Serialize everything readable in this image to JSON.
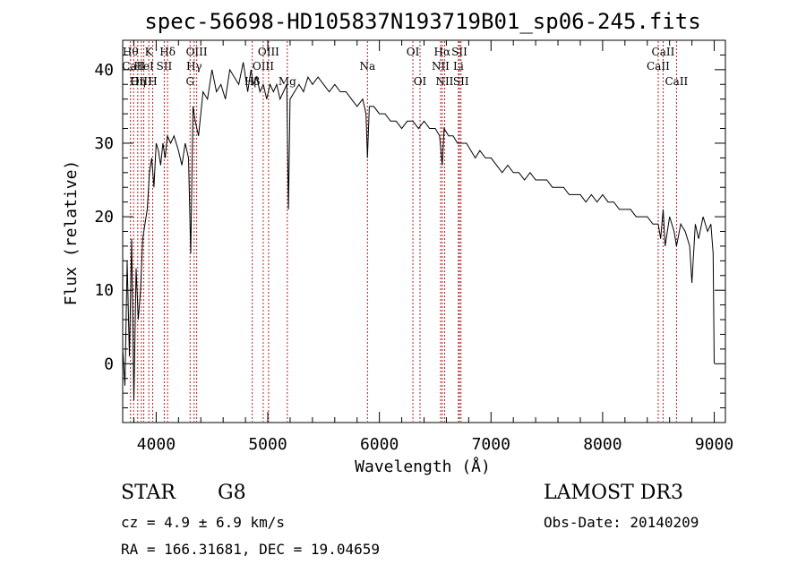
{
  "chart_data": {
    "type": "line",
    "title": "spec-56698-HD105837N193719B01_sp06-245.fits",
    "xlabel": "Wavelength (Å)",
    "ylabel": "Flux (relative)",
    "xlim": [
      3700,
      9100
    ],
    "ylim": [
      -8,
      44
    ],
    "xticks": [
      4000,
      5000,
      6000,
      7000,
      8000,
      9000
    ],
    "yticks": [
      0,
      10,
      20,
      30,
      40
    ],
    "series": [
      {
        "name": "flux",
        "x": [
          3700,
          3720,
          3740,
          3760,
          3780,
          3800,
          3820,
          3840,
          3860,
          3880,
          3900,
          3920,
          3940,
          3960,
          3980,
          4000,
          4020,
          4040,
          4060,
          4080,
          4100,
          4130,
          4160,
          4200,
          4230,
          4260,
          4290,
          4310,
          4330,
          4350,
          4380,
          4420,
          4460,
          4500,
          4540,
          4580,
          4620,
          4660,
          4700,
          4740,
          4780,
          4820,
          4850,
          4870,
          4900,
          4930,
          4960,
          4990,
          5020,
          5050,
          5080,
          5110,
          5140,
          5170,
          5185,
          5200,
          5240,
          5280,
          5320,
          5360,
          5400,
          5450,
          5500,
          5550,
          5600,
          5650,
          5700,
          5750,
          5800,
          5850,
          5880,
          5893,
          5910,
          5950,
          6000,
          6050,
          6100,
          6150,
          6200,
          6250,
          6300,
          6350,
          6400,
          6450,
          6500,
          6540,
          6563,
          6580,
          6620,
          6660,
          6700,
          6740,
          6780,
          6820,
          6860,
          6900,
          6950,
          7000,
          7050,
          7100,
          7150,
          7200,
          7250,
          7300,
          7350,
          7400,
          7450,
          7500,
          7550,
          7600,
          7650,
          7700,
          7750,
          7800,
          7850,
          7900,
          7950,
          8000,
          8050,
          8100,
          8150,
          8200,
          8250,
          8300,
          8350,
          8400,
          8450,
          8498,
          8520,
          8542,
          8560,
          8600,
          8640,
          8662,
          8700,
          8740,
          8780,
          8800,
          8830,
          8860,
          8900,
          8940,
          8970,
          8990,
          9000
        ],
        "values": [
          2,
          -3,
          14,
          1,
          17,
          -5,
          13,
          6,
          10,
          17,
          19,
          21,
          26,
          28,
          24,
          30,
          29,
          27,
          30,
          28,
          31,
          30,
          31,
          29,
          27,
          30,
          28,
          15,
          35,
          33,
          31,
          37,
          36,
          40,
          37,
          38,
          36,
          40,
          39,
          38,
          41,
          37,
          40,
          38,
          39,
          37,
          38,
          36,
          38,
          37,
          38,
          36,
          37,
          38,
          21,
          36,
          37,
          38,
          37,
          39,
          38,
          39,
          38,
          37,
          38,
          37,
          37,
          36,
          35,
          36,
          34,
          28,
          35,
          35,
          34,
          34,
          33,
          33,
          32,
          33,
          33,
          32,
          33,
          32,
          32,
          31,
          27,
          32,
          31,
          31,
          30,
          30,
          30,
          29,
          28,
          29,
          28,
          28,
          27,
          26,
          27,
          26,
          26,
          25,
          26,
          25,
          25,
          25,
          24,
          24,
          24,
          23,
          23,
          23,
          22,
          23,
          22,
          23,
          22,
          22,
          21,
          21,
          21,
          20,
          20,
          20,
          19,
          19,
          17,
          21,
          16,
          20,
          18,
          16,
          19,
          18,
          16,
          11,
          19,
          17,
          20,
          18,
          19,
          15,
          0
        ]
      }
    ],
    "lines": [
      {
        "wave": 3770,
        "label": "Hθ",
        "row": 1
      },
      {
        "wave": 3798,
        "label": "CaII",
        "row": 2
      },
      {
        "wave": 3835,
        "label": "Hη",
        "row": 3
      },
      {
        "wave": 3867,
        "label": "OIII",
        "row": 3
      },
      {
        "wave": 3889,
        "label": "HeI",
        "row": 2
      },
      {
        "wave": 3934,
        "label": "K",
        "row": 1
      },
      {
        "wave": 3969,
        "label": "H",
        "row": 3
      },
      {
        "wave": 4072,
        "label": "SII",
        "row": 2
      },
      {
        "wave": 4102,
        "label": "Hδ",
        "row": 1
      },
      {
        "wave": 4304,
        "label": "G",
        "row": 3
      },
      {
        "wave": 4340,
        "label": "Hγ",
        "row": 2
      },
      {
        "wave": 4363,
        "label": "OIII",
        "row": 1
      },
      {
        "wave": 4861,
        "label": "Hβ",
        "row": 3
      },
      {
        "wave": 4959,
        "label": "OIII",
        "row": 2
      },
      {
        "wave": 5007,
        "label": "OIII",
        "row": 1
      },
      {
        "wave": 5175,
        "label": "Mg",
        "row": 3
      },
      {
        "wave": 5893,
        "label": "Na",
        "row": 2
      },
      {
        "wave": 6300,
        "label": "OI",
        "row": 1
      },
      {
        "wave": 6364,
        "label": "OI",
        "row": 3
      },
      {
        "wave": 6548,
        "label": "NII",
        "row": 2
      },
      {
        "wave": 6563,
        "label": "Hα",
        "row": 1
      },
      {
        "wave": 6584,
        "label": "NII",
        "row": 3
      },
      {
        "wave": 6708,
        "label": "Li",
        "row": 2
      },
      {
        "wave": 6717,
        "label": "SII",
        "row": 1
      },
      {
        "wave": 6731,
        "label": "SII",
        "row": 3
      },
      {
        "wave": 8498,
        "label": "CaII",
        "row": 2
      },
      {
        "wave": 8542,
        "label": "CaII",
        "row": 1
      },
      {
        "wave": 8662,
        "label": "CaII",
        "row": 3
      }
    ]
  },
  "info": {
    "object_class": "STAR",
    "subclass": "G8",
    "cz": "cz = 4.9 ± 6.9 km/s",
    "coords": "RA = 166.31681, DEC =  19.04659",
    "survey": "LAMOST DR3",
    "obs_date": "Obs-Date: 20140209"
  }
}
